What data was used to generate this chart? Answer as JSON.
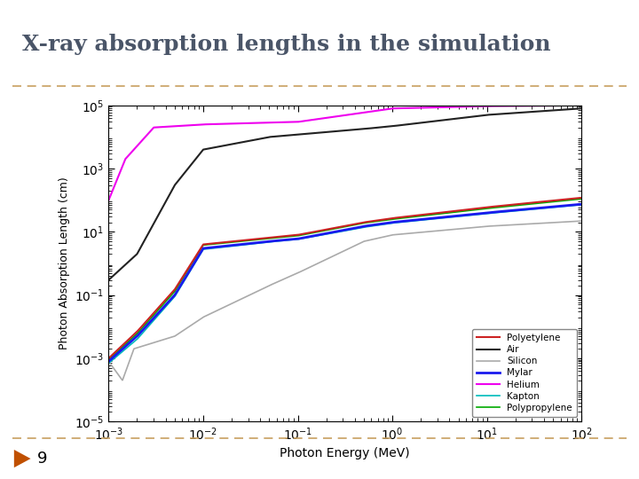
{
  "title": "X-ray absorption lengths in the simulation",
  "xlabel": "Photon Energy (MeV)",
  "ylabel": "Photon Absorption Length (cm)",
  "xlim_log": [
    -3,
    2
  ],
  "ylim_log": [
    -5,
    5
  ],
  "background_color": "#ffffff",
  "slide_bg": "#ffffff",
  "title_color": "#4a5568",
  "title_fontsize": 18,
  "slide_number": "9",
  "dashed_line_color": "#c8a060",
  "arrow_color": "#c05000",
  "legend_entries": [
    "Polyetylene",
    "Air",
    "Silicon",
    "Mylar",
    "Helium",
    "Kapton",
    "Polypropylene"
  ],
  "line_colors": {
    "Polyetylene": "#cc2222",
    "Air": "#222222",
    "Silicon": "#aaaaaa",
    "Mylar": "#1a1aee",
    "Helium": "#ee00ee",
    "Kapton": "#00bbbb",
    "Polypropylene": "#00aa00"
  },
  "line_widths": {
    "Polyetylene": 1.5,
    "Air": 1.5,
    "Silicon": 1.2,
    "Mylar": 2.0,
    "Helium": 1.5,
    "Kapton": 1.2,
    "Polypropylene": 1.2
  }
}
